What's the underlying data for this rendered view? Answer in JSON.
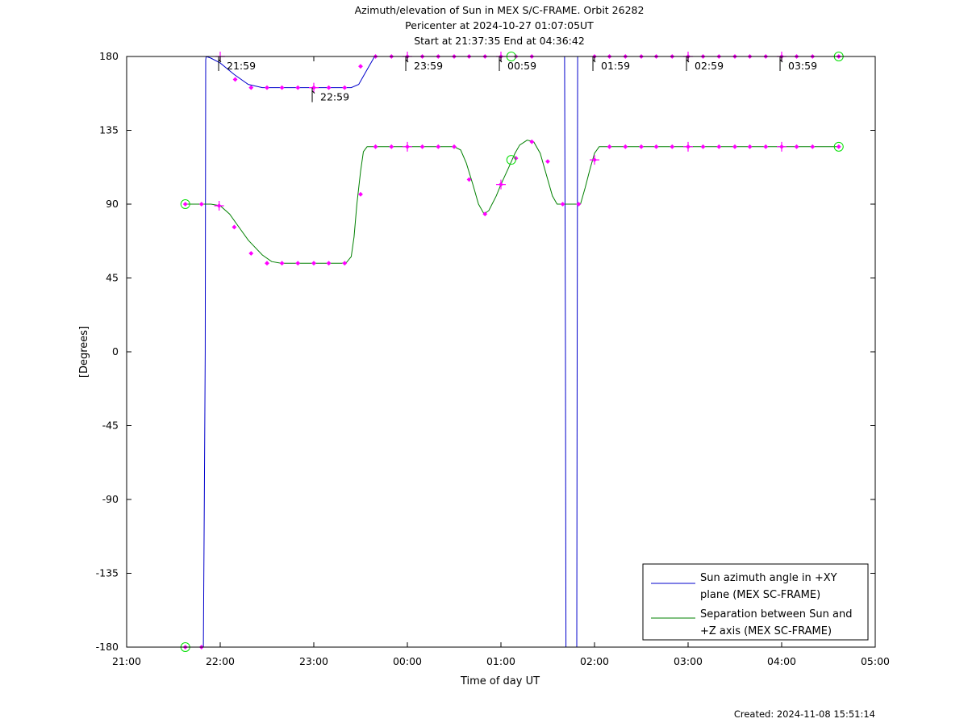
{
  "chart_data": {
    "type": "line",
    "title": [
      "Azimuth/elevation of Sun in MEX S/C-FRAME.  Orbit 26282",
      "Pericenter at 2024-10-27 01:07:05UT",
      "Start at 21:37:35 End at 04:36:42"
    ],
    "xlabel": "Time of day UT",
    "ylabel": "[Degrees]",
    "x_unit": "hours since 21:00 UT",
    "xlim": [
      0,
      8
    ],
    "ylim": [
      -180,
      180
    ],
    "x_ticks": [
      {
        "v": 0,
        "label": "21:00"
      },
      {
        "v": 1,
        "label": "22:00"
      },
      {
        "v": 2,
        "label": "23:00"
      },
      {
        "v": 3,
        "label": "00:00"
      },
      {
        "v": 4,
        "label": "01:00"
      },
      {
        "v": 5,
        "label": "02:00"
      },
      {
        "v": 6,
        "label": "03:00"
      },
      {
        "v": 7,
        "label": "04:00"
      },
      {
        "v": 8,
        "label": "05:00"
      }
    ],
    "y_ticks": [
      {
        "v": 180,
        "label": "180"
      },
      {
        "v": 135,
        "label": "135"
      },
      {
        "v": 90,
        "label": "90"
      },
      {
        "v": 45,
        "label": "45"
      },
      {
        "v": 0,
        "label": "0"
      },
      {
        "v": -45,
        "label": "-45"
      },
      {
        "v": -90,
        "label": "-90"
      },
      {
        "v": -135,
        "label": "-135"
      },
      {
        "v": -180,
        "label": "-180"
      }
    ],
    "legend_position": "bottom-right",
    "series": [
      {
        "name": "Sun azimuth angle in +XY plane (MEX SC-FRAME)",
        "legend_lines": [
          "Sun azimuth angle in +XY",
          "plane (MEX SC-FRAME)"
        ],
        "color": "#0000cc",
        "points": [
          [
            0.627,
            -180
          ],
          [
            0.8,
            -180
          ],
          [
            0.82,
            -180
          ],
          [
            0.83,
            -90
          ],
          [
            0.84,
            0
          ],
          [
            0.845,
            178
          ],
          [
            0.85,
            180
          ],
          [
            0.9,
            179
          ],
          [
            1.0,
            176
          ],
          [
            1.15,
            169
          ],
          [
            1.3,
            163
          ],
          [
            1.45,
            161
          ],
          [
            2.0,
            161
          ],
          [
            2.4,
            161
          ],
          [
            2.48,
            163
          ],
          [
            2.57,
            172
          ],
          [
            2.65,
            180
          ],
          [
            4.35,
            180
          ],
          [
            4.68,
            180
          ],
          [
            4.69,
            0
          ],
          [
            4.695,
            -180
          ],
          [
            4.8,
            -180
          ],
          [
            4.81,
            -180
          ],
          [
            4.815,
            0
          ],
          [
            4.82,
            180
          ],
          [
            7.61,
            180
          ]
        ]
      },
      {
        "name": "Separation between Sun and +Z axis (MEX SC-FRAME)",
        "legend_lines": [
          "Separation between Sun and",
          "+Z axis (MEX SC-FRAME)"
        ],
        "color": "#008000",
        "points": [
          [
            0.627,
            90
          ],
          [
            0.8,
            90
          ],
          [
            0.9,
            90
          ],
          [
            1.0,
            89
          ],
          [
            1.1,
            84
          ],
          [
            1.2,
            76
          ],
          [
            1.3,
            68
          ],
          [
            1.35,
            65
          ],
          [
            1.45,
            59
          ],
          [
            1.55,
            55
          ],
          [
            1.65,
            54
          ],
          [
            1.8,
            54
          ],
          [
            2.0,
            54
          ],
          [
            2.3,
            54
          ],
          [
            2.35,
            54.5
          ],
          [
            2.4,
            58
          ],
          [
            2.43,
            70
          ],
          [
            2.46,
            90
          ],
          [
            2.5,
            110
          ],
          [
            2.53,
            122
          ],
          [
            2.57,
            125
          ],
          [
            3.0,
            125
          ],
          [
            3.5,
            125
          ],
          [
            3.57,
            123
          ],
          [
            3.63,
            115
          ],
          [
            3.7,
            102
          ],
          [
            3.76,
            90
          ],
          [
            3.82,
            84
          ],
          [
            3.87,
            86
          ],
          [
            3.95,
            95
          ],
          [
            4.0,
            102
          ],
          [
            4.08,
            112
          ],
          [
            4.15,
            121
          ],
          [
            4.2,
            126
          ],
          [
            4.28,
            129
          ],
          [
            4.35,
            128
          ],
          [
            4.42,
            121
          ],
          [
            4.5,
            105
          ],
          [
            4.55,
            95
          ],
          [
            4.6,
            90
          ],
          [
            4.85,
            90
          ],
          [
            4.9,
            100
          ],
          [
            4.95,
            111
          ],
          [
            5.0,
            121
          ],
          [
            5.05,
            125
          ],
          [
            5.5,
            125
          ],
          [
            6.0,
            125
          ],
          [
            7.0,
            125
          ],
          [
            7.61,
            125
          ]
        ]
      }
    ],
    "marker_color": "#ff00ff",
    "markers": [
      [
        0.627,
        -180
      ],
      [
        0.8,
        -180
      ],
      [
        0.627,
        90
      ],
      [
        0.8,
        90
      ],
      [
        0.988,
        89
      ],
      [
        1.15,
        76
      ],
      [
        1.33,
        60
      ],
      [
        1.5,
        54
      ],
      [
        1.66,
        54
      ],
      [
        1.83,
        54
      ],
      [
        2.0,
        54
      ],
      [
        2.16,
        54
      ],
      [
        2.33,
        54
      ],
      [
        2.5,
        96
      ],
      [
        2.66,
        125
      ],
      [
        2.83,
        125
      ],
      [
        3.0,
        125
      ],
      [
        3.16,
        125
      ],
      [
        3.33,
        125
      ],
      [
        3.5,
        125
      ],
      [
        3.66,
        105
      ],
      [
        3.83,
        84
      ],
      [
        4.0,
        102
      ],
      [
        4.16,
        118
      ],
      [
        4.33,
        128
      ],
      [
        4.5,
        116
      ],
      [
        4.66,
        90
      ],
      [
        4.83,
        90
      ],
      [
        5.0,
        117
      ],
      [
        5.16,
        125
      ],
      [
        5.33,
        125
      ],
      [
        5.5,
        125
      ],
      [
        5.66,
        125
      ],
      [
        5.83,
        125
      ],
      [
        6.0,
        125
      ],
      [
        6.16,
        125
      ],
      [
        6.33,
        125
      ],
      [
        6.5,
        125
      ],
      [
        6.66,
        125
      ],
      [
        6.83,
        125
      ],
      [
        7.0,
        125
      ],
      [
        7.16,
        125
      ],
      [
        7.33,
        125
      ],
      [
        7.61,
        125
      ],
      [
        1.16,
        166
      ],
      [
        1.33,
        161
      ],
      [
        1.5,
        161
      ],
      [
        1.66,
        161
      ],
      [
        1.83,
        161
      ],
      [
        2.0,
        161
      ],
      [
        2.16,
        161
      ],
      [
        2.33,
        161
      ],
      [
        2.5,
        174
      ],
      [
        2.66,
        180
      ],
      [
        2.83,
        180
      ],
      [
        3.0,
        180
      ],
      [
        3.16,
        180
      ],
      [
        3.33,
        180
      ],
      [
        3.5,
        180
      ],
      [
        3.66,
        180
      ],
      [
        3.83,
        180
      ],
      [
        4.0,
        180
      ],
      [
        4.16,
        180
      ],
      [
        4.33,
        180
      ],
      [
        5.0,
        180
      ],
      [
        5.16,
        180
      ],
      [
        5.33,
        180
      ],
      [
        5.5,
        180
      ],
      [
        5.66,
        180
      ],
      [
        5.83,
        180
      ],
      [
        6.0,
        180
      ],
      [
        6.16,
        180
      ],
      [
        6.33,
        180
      ],
      [
        6.5,
        180
      ],
      [
        6.66,
        180
      ],
      [
        6.83,
        180
      ],
      [
        7.0,
        180
      ],
      [
        7.16,
        180
      ],
      [
        7.33,
        180
      ],
      [
        7.61,
        180
      ]
    ],
    "cross_markers": [
      [
        0.988,
        89
      ],
      [
        2.0,
        161
      ],
      [
        4.0,
        102
      ],
      [
        5.0,
        117
      ],
      [
        1.0,
        180
      ],
      [
        3.0,
        180
      ],
      [
        4.0,
        180
      ],
      [
        6.0,
        180
      ],
      [
        7.0,
        180
      ],
      [
        3.0,
        125
      ],
      [
        6.0,
        125
      ],
      [
        7.0,
        125
      ]
    ],
    "circle_markers": [
      [
        0.627,
        -180
      ],
      [
        0.627,
        90
      ],
      [
        4.11,
        117
      ],
      [
        4.11,
        180
      ],
      [
        7.61,
        180
      ],
      [
        7.61,
        125
      ]
    ],
    "hour_annotations": [
      {
        "x": 0.983,
        "label": "21:59"
      },
      {
        "x": 1.983,
        "label": "22:59"
      },
      {
        "x": 2.983,
        "label": "23:59"
      },
      {
        "x": 3.983,
        "label": "00:59"
      },
      {
        "x": 4.983,
        "label": "01:59"
      },
      {
        "x": 5.983,
        "label": "02:59"
      },
      {
        "x": 6.983,
        "label": "03:59"
      }
    ]
  },
  "footer": {
    "created": "Created: 2024-11-08 15:51:14"
  }
}
